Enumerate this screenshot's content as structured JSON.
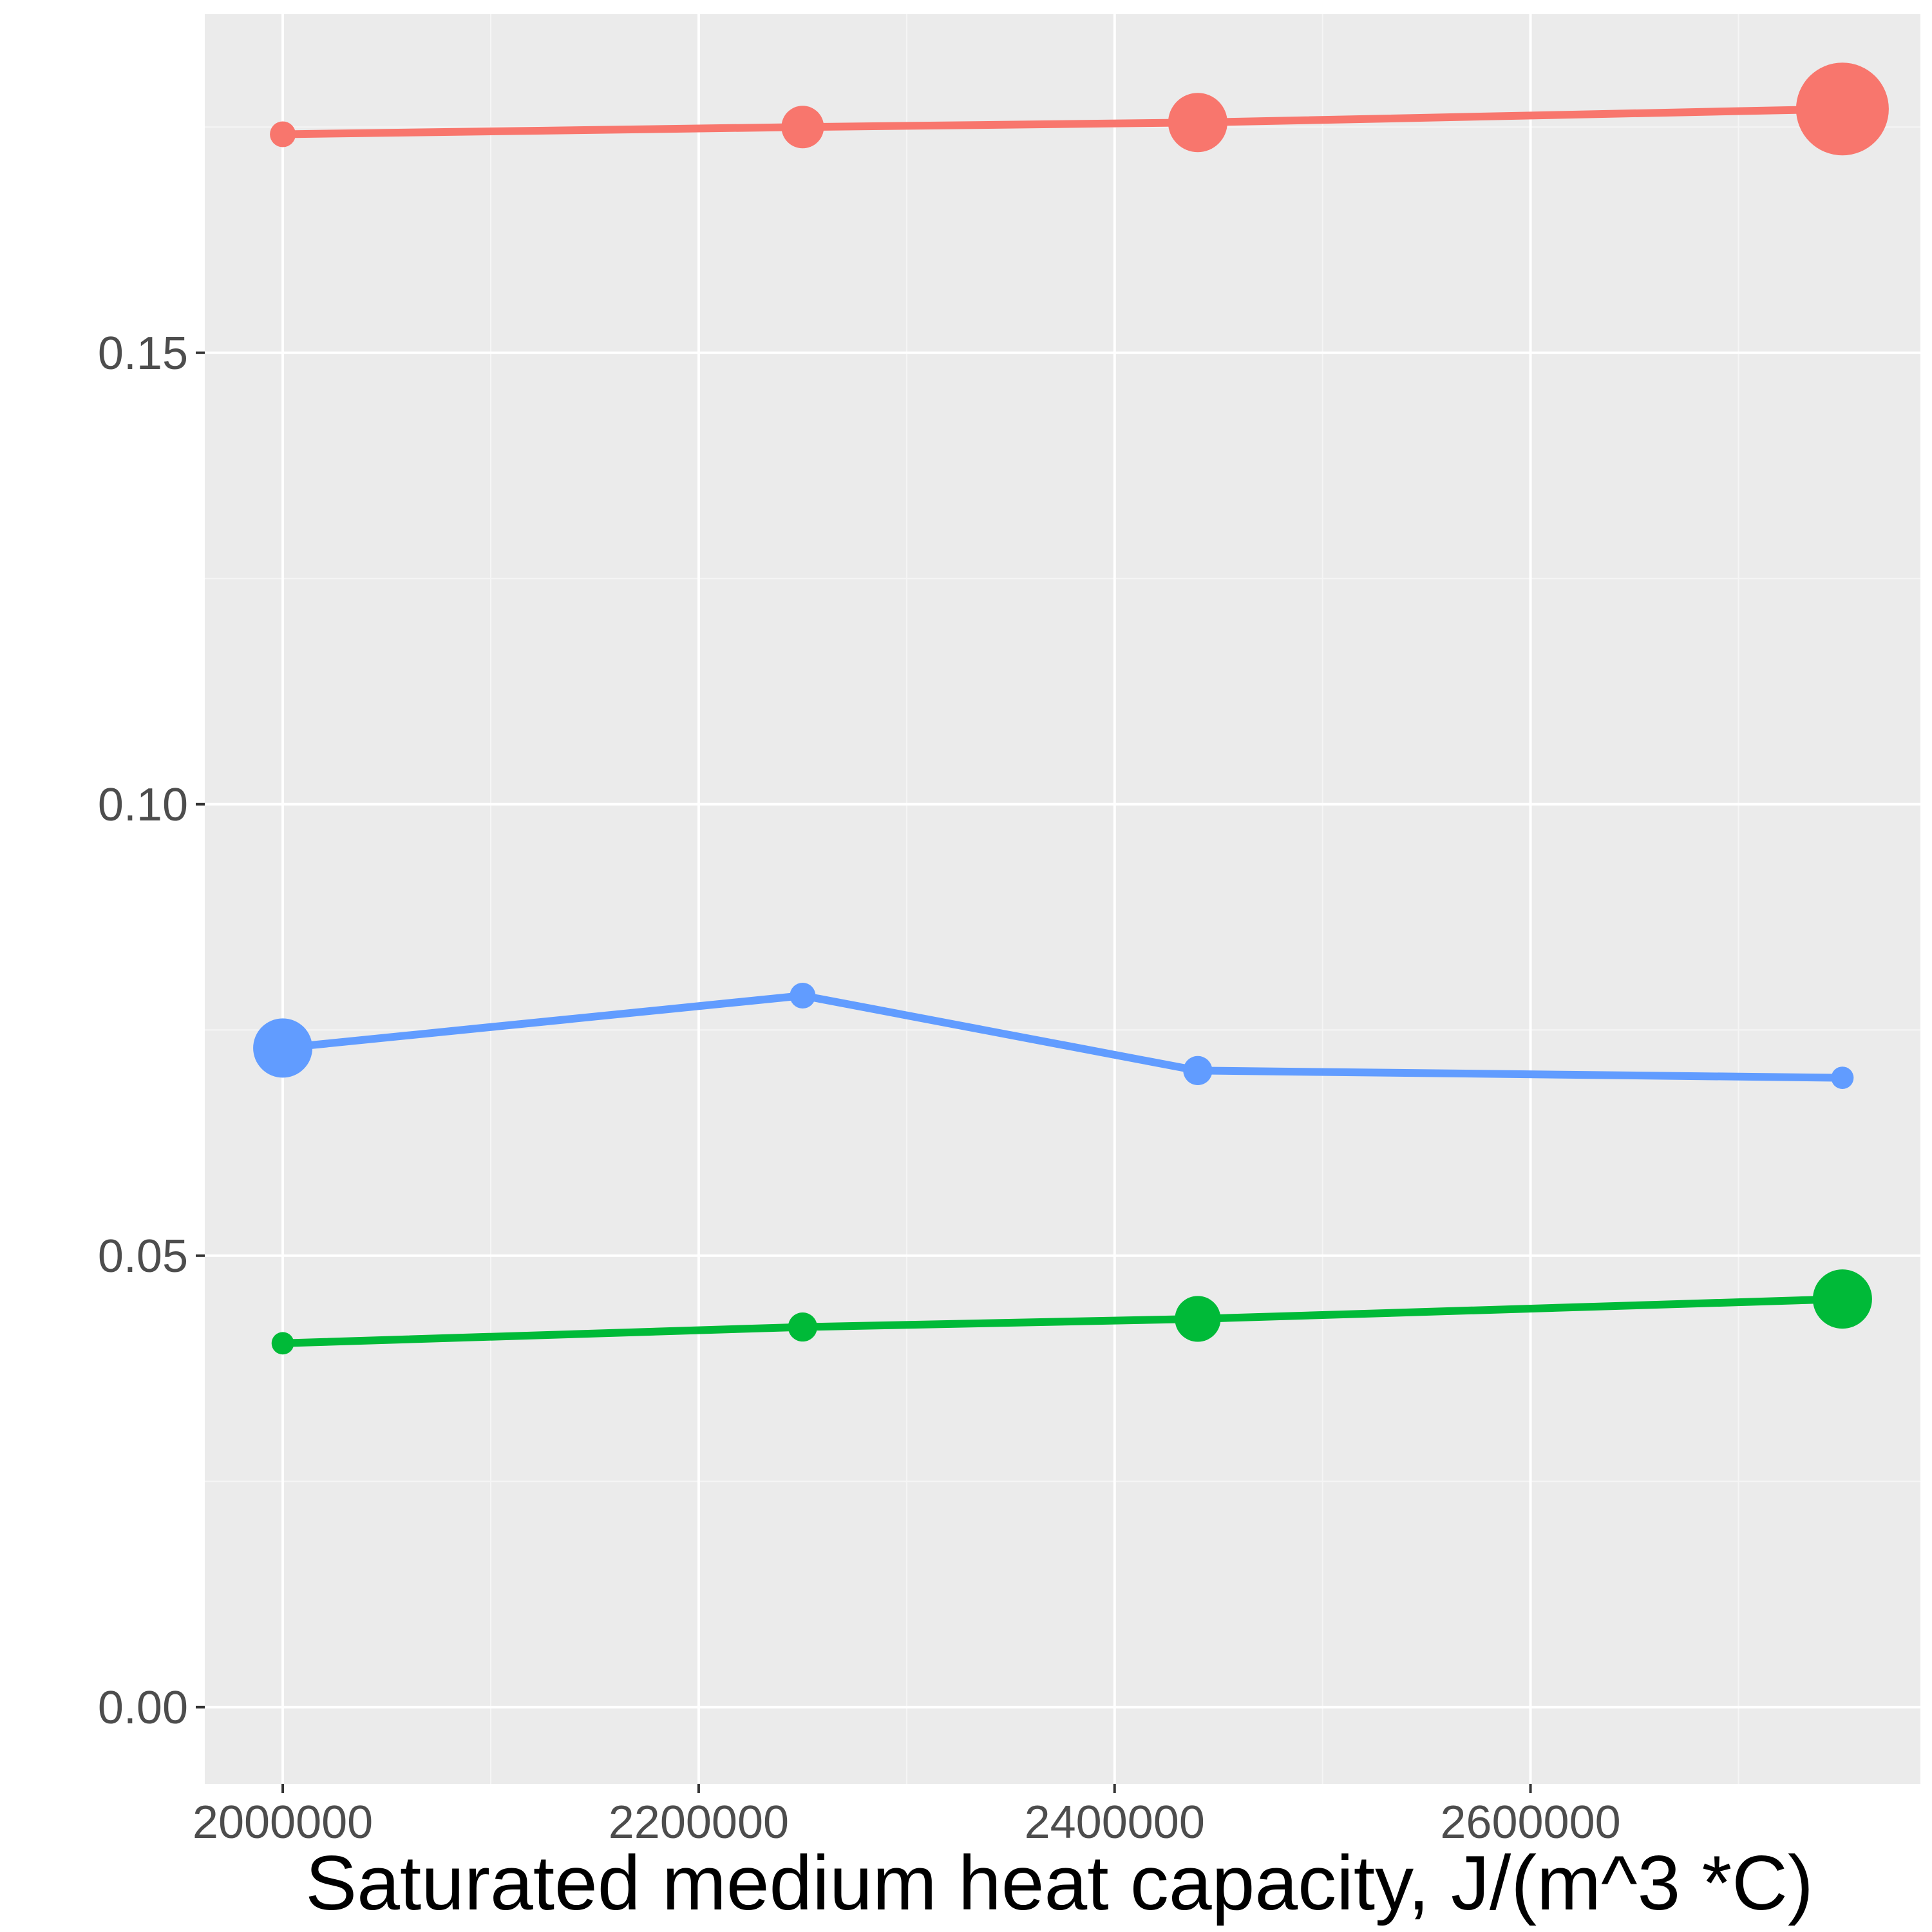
{
  "chart_data": {
    "type": "line",
    "title": "",
    "xlabel": "Saturated medium heat capacity, J/(m^3 *C)",
    "ylabel": "",
    "x": [
      2000000,
      2250000,
      2440000,
      2750000
    ],
    "xlim": [
      1962500,
      2787500
    ],
    "ylim": [
      -0.0085,
      0.1875
    ],
    "x_major_ticks": [
      2000000,
      2200000,
      2400000,
      2600000
    ],
    "x_tick_labels": [
      "2000000",
      "2200000",
      "2400000",
      "2600000"
    ],
    "x_minor_ticks": [
      2100000,
      2300000,
      2500000,
      2700000
    ],
    "y_major_ticks": [
      0.0,
      0.05,
      0.1,
      0.15
    ],
    "y_tick_labels": [
      "0.00",
      "0.05",
      "0.10",
      "0.15"
    ],
    "y_minor_ticks": [
      0.025,
      0.075,
      0.125,
      0.175
    ],
    "grid": true,
    "legend": "none",
    "series": [
      {
        "color": "#F8766D",
        "values": [
          0.1742,
          0.175,
          0.1755,
          0.177
        ],
        "point_sizes": [
          1,
          2,
          3,
          5
        ]
      },
      {
        "color": "#619CFF",
        "values": [
          0.073,
          0.0788,
          0.0705,
          0.0697
        ],
        "point_sizes": [
          3,
          1,
          1.2,
          0.8
        ]
      },
      {
        "color": "#00BA38",
        "values": [
          0.0403,
          0.0421,
          0.043,
          0.0452
        ],
        "point_sizes": [
          0.8,
          1.2,
          2.2,
          3
        ]
      }
    ],
    "colors": {
      "panel_background": "#EBEBEB",
      "grid_major": "#FFFFFF",
      "grid_minor": "#F5F5F5",
      "axis_ticks": "#333333"
    }
  }
}
